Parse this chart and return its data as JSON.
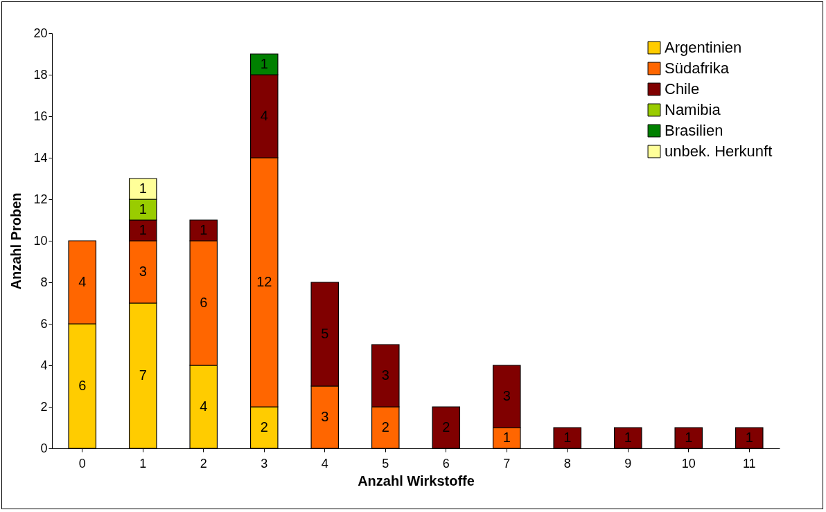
{
  "chart_data": {
    "type": "bar",
    "stacked": true,
    "xlabel": "Anzahl Wirkstoffe",
    "ylabel": "Anzahl Proben",
    "categories": [
      "0",
      "1",
      "2",
      "3",
      "4",
      "5",
      "6",
      "7",
      "8",
      "9",
      "10",
      "11"
    ],
    "series": [
      {
        "name": "Argentinien",
        "color": "#ffcc00",
        "values": [
          6,
          7,
          4,
          2,
          null,
          null,
          null,
          null,
          null,
          null,
          null,
          null
        ]
      },
      {
        "name": "Südafrika",
        "color": "#ff6600",
        "values": [
          4,
          3,
          6,
          12,
          3,
          2,
          null,
          1,
          null,
          null,
          null,
          null
        ]
      },
      {
        "name": "Chile",
        "color": "#800000",
        "values": [
          null,
          1,
          1,
          4,
          5,
          3,
          2,
          3,
          1,
          1,
          1,
          1
        ]
      },
      {
        "name": "Namibia",
        "color": "#99cc00",
        "values": [
          null,
          1,
          null,
          null,
          null,
          null,
          null,
          null,
          null,
          null,
          null,
          null
        ]
      },
      {
        "name": "Brasilien",
        "color": "#008000",
        "values": [
          null,
          null,
          null,
          1,
          null,
          null,
          null,
          null,
          null,
          null,
          null,
          null
        ]
      },
      {
        "name": "unbek. Herkunft",
        "color": "#ffff99",
        "values": [
          null,
          1,
          null,
          null,
          null,
          null,
          null,
          null,
          null,
          null,
          null,
          null
        ]
      }
    ],
    "ylim": [
      0,
      20
    ],
    "yticks": [
      0,
      2,
      4,
      6,
      8,
      10,
      12,
      14,
      16,
      18,
      20
    ],
    "grid": false,
    "legend": "top right",
    "data_labels": true
  }
}
